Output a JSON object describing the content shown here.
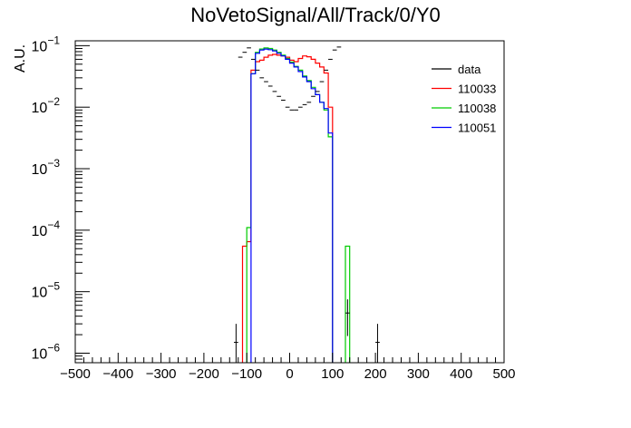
{
  "chart_data": {
    "type": "line",
    "title": "NoVetoSignal/All/Track/0/Y0",
    "xlabel": "",
    "ylabel": "A.U.",
    "xlim": [
      -500,
      500
    ],
    "ylim": [
      7e-07,
      0.12
    ],
    "y_scale": "log",
    "x_ticks": [
      -500,
      -400,
      -300,
      -200,
      -100,
      0,
      100,
      200,
      300,
      400,
      500
    ],
    "y_ticks": [
      {
        "value": 1e-06,
        "base": "10",
        "exp": "−6"
      },
      {
        "value": 1e-05,
        "base": "10",
        "exp": "−5"
      },
      {
        "value": 0.0001,
        "base": "10",
        "exp": "−4"
      },
      {
        "value": 0.001,
        "base": "10",
        "exp": "−3"
      },
      {
        "value": 0.01,
        "base": "10",
        "exp": "−2"
      },
      {
        "value": 0.1,
        "base": "10",
        "exp": "−1"
      }
    ],
    "legend": {
      "position": "top-right",
      "entries": [
        {
          "label": "data",
          "color": "#000000"
        },
        {
          "label": "110033",
          "color": "#ff0000"
        },
        {
          "label": "110038",
          "color": "#00cc00"
        },
        {
          "label": "110051",
          "color": "#0000ff"
        }
      ]
    },
    "bin_width": 10,
    "data_points": [
      {
        "x": -125,
        "y": 1.5e-06,
        "ylo": 7e-07,
        "yhi": 3e-06
      },
      {
        "x": -115,
        "y": 0.065
      },
      {
        "x": -105,
        "y": 0.078
      },
      {
        "x": -95,
        "y": 0.092
      },
      {
        "x": -85,
        "y": 0.06
      },
      {
        "x": -75,
        "y": 0.04
      },
      {
        "x": -65,
        "y": 0.03
      },
      {
        "x": -55,
        "y": 0.026
      },
      {
        "x": -45,
        "y": 0.022
      },
      {
        "x": -35,
        "y": 0.018
      },
      {
        "x": -25,
        "y": 0.015
      },
      {
        "x": -15,
        "y": 0.013
      },
      {
        "x": -5,
        "y": 0.01
      },
      {
        "x": 5,
        "y": 0.009
      },
      {
        "x": 15,
        "y": 0.009
      },
      {
        "x": 25,
        "y": 0.01
      },
      {
        "x": 35,
        "y": 0.011
      },
      {
        "x": 45,
        "y": 0.012
      },
      {
        "x": 55,
        "y": 0.015
      },
      {
        "x": 65,
        "y": 0.018
      },
      {
        "x": 75,
        "y": 0.026
      },
      {
        "x": 85,
        "y": 0.04
      },
      {
        "x": 95,
        "y": 0.06
      },
      {
        "x": 105,
        "y": 0.085
      },
      {
        "x": 115,
        "y": 0.095
      },
      {
        "x": 135,
        "y": 4.5e-06,
        "ylo": 1.9e-06,
        "yhi": 7.5e-06
      },
      {
        "x": 205,
        "y": 1.5e-06,
        "ylo": 7e-07,
        "yhi": 3e-06
      }
    ],
    "series": [
      {
        "name": "110033",
        "color": "#ff0000",
        "bins": [
          {
            "x0": -110,
            "x1": -100,
            "y": 5.5e-05
          },
          {
            "x0": -100,
            "x1": -90,
            "y": 6.5e-05
          },
          {
            "x0": -90,
            "x1": -80,
            "y": 0.04
          },
          {
            "x0": -80,
            "x1": -70,
            "y": 0.055
          },
          {
            "x0": -70,
            "x1": -60,
            "y": 0.058
          },
          {
            "x0": -60,
            "x1": -50,
            "y": 0.065
          },
          {
            "x0": -50,
            "x1": -40,
            "y": 0.07
          },
          {
            "x0": -40,
            "x1": -30,
            "y": 0.072
          },
          {
            "x0": -30,
            "x1": -20,
            "y": 0.07
          },
          {
            "x0": -20,
            "x1": -10,
            "y": 0.068
          },
          {
            "x0": -10,
            "x1": 0,
            "y": 0.065
          },
          {
            "x0": 0,
            "x1": 10,
            "y": 0.058
          },
          {
            "x0": 10,
            "x1": 20,
            "y": 0.055
          },
          {
            "x0": 20,
            "x1": 30,
            "y": 0.062
          },
          {
            "x0": 30,
            "x1": 40,
            "y": 0.068
          },
          {
            "x0": 40,
            "x1": 50,
            "y": 0.066
          },
          {
            "x0": 50,
            "x1": 60,
            "y": 0.06
          },
          {
            "x0": 60,
            "x1": 70,
            "y": 0.052
          },
          {
            "x0": 70,
            "x1": 80,
            "y": 0.045
          },
          {
            "x0": 80,
            "x1": 90,
            "y": 0.036
          },
          {
            "x0": 90,
            "x1": 100,
            "y": 0.01
          }
        ]
      },
      {
        "name": "110038",
        "color": "#00cc00",
        "bins": [
          {
            "x0": -100,
            "x1": -90,
            "y": 0.00011
          },
          {
            "x0": -90,
            "x1": -80,
            "y": 0.035
          },
          {
            "x0": -80,
            "x1": -70,
            "y": 0.078
          },
          {
            "x0": -70,
            "x1": -60,
            "y": 0.088
          },
          {
            "x0": -60,
            "x1": -50,
            "y": 0.092
          },
          {
            "x0": -50,
            "x1": -40,
            "y": 0.09
          },
          {
            "x0": -40,
            "x1": -30,
            "y": 0.085
          },
          {
            "x0": -30,
            "x1": -20,
            "y": 0.078
          },
          {
            "x0": -20,
            "x1": -10,
            "y": 0.07
          },
          {
            "x0": -10,
            "x1": 0,
            "y": 0.062
          },
          {
            "x0": 0,
            "x1": 10,
            "y": 0.054
          },
          {
            "x0": 10,
            "x1": 20,
            "y": 0.046
          },
          {
            "x0": 20,
            "x1": 30,
            "y": 0.04
          },
          {
            "x0": 30,
            "x1": 40,
            "y": 0.032
          },
          {
            "x0": 40,
            "x1": 50,
            "y": 0.027
          },
          {
            "x0": 50,
            "x1": 60,
            "y": 0.021
          },
          {
            "x0": 60,
            "x1": 70,
            "y": 0.016
          },
          {
            "x0": 70,
            "x1": 80,
            "y": 0.012
          },
          {
            "x0": 80,
            "x1": 90,
            "y": 0.009
          },
          {
            "x0": 90,
            "x1": 100,
            "y": 0.0033
          },
          {
            "x0": 130,
            "x1": 140,
            "y": 5.5e-05
          }
        ]
      },
      {
        "name": "110051",
        "color": "#0000ff",
        "bins": [
          {
            "x0": -90,
            "x1": -80,
            "y": 0.035
          },
          {
            "x0": -80,
            "x1": -70,
            "y": 0.075
          },
          {
            "x0": -70,
            "x1": -60,
            "y": 0.085
          },
          {
            "x0": -60,
            "x1": -50,
            "y": 0.088
          },
          {
            "x0": -50,
            "x1": -40,
            "y": 0.086
          },
          {
            "x0": -40,
            "x1": -30,
            "y": 0.082
          },
          {
            "x0": -30,
            "x1": -20,
            "y": 0.075
          },
          {
            "x0": -20,
            "x1": -10,
            "y": 0.068
          },
          {
            "x0": -10,
            "x1": 0,
            "y": 0.06
          },
          {
            "x0": 0,
            "x1": 10,
            "y": 0.052
          },
          {
            "x0": 10,
            "x1": 20,
            "y": 0.045
          },
          {
            "x0": 20,
            "x1": 30,
            "y": 0.038
          },
          {
            "x0": 30,
            "x1": 40,
            "y": 0.031
          },
          {
            "x0": 40,
            "x1": 50,
            "y": 0.026
          },
          {
            "x0": 50,
            "x1": 60,
            "y": 0.02
          },
          {
            "x0": 60,
            "x1": 70,
            "y": 0.016
          },
          {
            "x0": 70,
            "x1": 80,
            "y": 0.012
          },
          {
            "x0": 80,
            "x1": 90,
            "y": 0.0095
          },
          {
            "x0": 90,
            "x1": 100,
            "y": 0.0038
          }
        ]
      }
    ]
  }
}
